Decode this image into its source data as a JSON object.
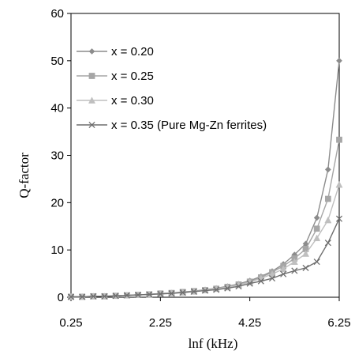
{
  "chart_data": {
    "type": "line",
    "xlabel": "lnf (kHz)",
    "ylabel": "Q-factor",
    "xlim": [
      0.25,
      6.25
    ],
    "ylim": [
      0,
      60
    ],
    "xticks": [
      "0.25",
      "2.25",
      "4.25",
      "6.25"
    ],
    "yticks": [
      "0",
      "10",
      "20",
      "30",
      "40",
      "50",
      "60"
    ],
    "grid": false,
    "legend_position": "top-left",
    "x": [
      0.25,
      0.5,
      0.75,
      1.0,
      1.25,
      1.5,
      1.75,
      2.0,
      2.25,
      2.5,
      2.75,
      3.0,
      3.25,
      3.5,
      3.75,
      4.0,
      4.25,
      4.5,
      4.75,
      5.0,
      5.25,
      5.5,
      5.75,
      6.0,
      6.25
    ],
    "series": [
      {
        "name": "x = 0.20",
        "marker": "diamond",
        "color": "#8c8c8c",
        "values": [
          0.1,
          0.1,
          0.2,
          0.2,
          0.3,
          0.4,
          0.5,
          0.6,
          0.8,
          0.9,
          1.1,
          1.3,
          1.6,
          1.9,
          2.3,
          2.8,
          3.5,
          4.4,
          5.5,
          7.0,
          9.0,
          11.3,
          16.8,
          27.0,
          50.0
        ]
      },
      {
        "name": "x = 0.25",
        "marker": "square",
        "color": "#a6a6a6",
        "values": [
          0.1,
          0.1,
          0.2,
          0.2,
          0.3,
          0.4,
          0.5,
          0.6,
          0.8,
          0.9,
          1.1,
          1.3,
          1.5,
          1.8,
          2.2,
          2.7,
          3.3,
          4.2,
          5.3,
          6.6,
          8.2,
          10.2,
          14.5,
          20.8,
          33.3
        ]
      },
      {
        "name": "x = 0.30",
        "marker": "triangle",
        "color": "#bfbfbf",
        "values": [
          0.1,
          0.1,
          0.2,
          0.2,
          0.3,
          0.4,
          0.5,
          0.6,
          0.7,
          0.9,
          1.0,
          1.2,
          1.5,
          1.8,
          2.1,
          2.6,
          3.2,
          4.0,
          4.9,
          6.0,
          7.5,
          9.2,
          12.5,
          16.3,
          23.8
        ]
      },
      {
        "name": "x = 0.35 (Pure Mg-Zn ferrites)",
        "marker": "x",
        "color": "#6e6e6e",
        "values": [
          0.1,
          0.1,
          0.2,
          0.2,
          0.3,
          0.4,
          0.5,
          0.6,
          0.7,
          0.8,
          1.0,
          1.2,
          1.4,
          1.6,
          1.9,
          2.3,
          2.9,
          3.4,
          4.0,
          4.9,
          5.6,
          6.2,
          7.5,
          11.5,
          16.6
        ]
      }
    ]
  }
}
